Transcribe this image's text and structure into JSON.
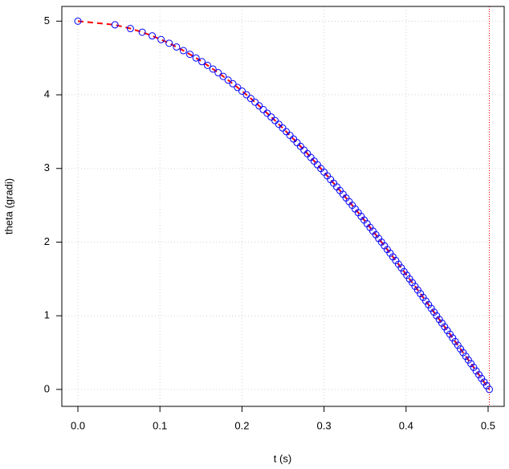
{
  "chart_data": {
    "type": "scatter",
    "xlabel": "t (s)",
    "ylabel": "theta (gradi)",
    "series": [
      {
        "color": "#0000ff",
        "line_color": "#ff0000",
        "x": [
          0,
          0.0452,
          0.064,
          0.0784,
          0.0906,
          0.1014,
          0.1112,
          0.1202,
          0.1286,
          0.1365,
          0.144,
          0.1512,
          0.158,
          0.1646,
          0.171,
          0.1771,
          0.1831,
          0.1889,
          0.1946,
          0.2001,
          0.2055,
          0.2107,
          0.2159,
          0.2209,
          0.2259,
          0.2307,
          0.2355,
          0.2403,
          0.2449,
          0.2495,
          0.254,
          0.2584,
          0.2628,
          0.2671,
          0.2714,
          0.2756,
          0.2798,
          0.2839,
          0.288,
          0.292,
          0.2961,
          0.3,
          0.304,
          0.3079,
          0.3117,
          0.3156,
          0.3194,
          0.3232,
          0.3269,
          0.3306,
          0.3344,
          0.338,
          0.3417,
          0.3453,
          0.3489,
          0.3525,
          0.3561,
          0.3596,
          0.3632,
          0.3666,
          0.3701,
          0.3736,
          0.3771,
          0.3805,
          0.3839,
          0.3874,
          0.3908,
          0.3942,
          0.3975,
          0.4009,
          0.4042,
          0.4076,
          0.4109,
          0.4142,
          0.4175,
          0.4208,
          0.4241,
          0.4274,
          0.4307,
          0.434,
          0.4372,
          0.4405,
          0.4437,
          0.447,
          0.4502,
          0.4535,
          0.4567,
          0.4599,
          0.4631,
          0.4663,
          0.4695,
          0.4728,
          0.4759,
          0.4791,
          0.4824,
          0.4855,
          0.4888,
          0.4919,
          0.4951,
          0.4983,
          0.5015
        ],
        "values": [
          5,
          4.95,
          4.9,
          4.85,
          4.8,
          4.75,
          4.7,
          4.65,
          4.6,
          4.55,
          4.5,
          4.45,
          4.4,
          4.35,
          4.3,
          4.25,
          4.2,
          4.15,
          4.1,
          4.05,
          4,
          3.95,
          3.9,
          3.85,
          3.8,
          3.75,
          3.7,
          3.65,
          3.6,
          3.55,
          3.5,
          3.45,
          3.4,
          3.35,
          3.3,
          3.25,
          3.2,
          3.15,
          3.1,
          3.05,
          3,
          2.95,
          2.9,
          2.85,
          2.8,
          2.75,
          2.7,
          2.65,
          2.6,
          2.55,
          2.5,
          2.45,
          2.4,
          2.35,
          2.3,
          2.25,
          2.2,
          2.15,
          2.1,
          2.05,
          2,
          1.95,
          1.9,
          1.85,
          1.8,
          1.75,
          1.7,
          1.65,
          1.6,
          1.55,
          1.5,
          1.45,
          1.4,
          1.35,
          1.3,
          1.25,
          1.2,
          1.15,
          1.1,
          1.05,
          1,
          0.95,
          0.9,
          0.85,
          0.8,
          0.75,
          0.7,
          0.65,
          0.6,
          0.55,
          0.5,
          0.45,
          0.4,
          0.35,
          0.3,
          0.25,
          0.2,
          0.15,
          0.1,
          0.05,
          0
        ]
      }
    ],
    "vline": {
      "x": 0.5015,
      "color": "#ff0000"
    },
    "xlim": [
      -0.0196,
      0.5196
    ],
    "ylim": [
      -0.23,
      5.2
    ],
    "xticks": [
      {
        "value": 0,
        "label": "0.0"
      },
      {
        "value": 0.1,
        "label": "0.1"
      },
      {
        "value": 0.2,
        "label": "0.2"
      },
      {
        "value": 0.3,
        "label": "0.3"
      },
      {
        "value": 0.4,
        "label": "0.4"
      },
      {
        "value": 0.5,
        "label": "0.5"
      }
    ],
    "yticks": [
      0,
      1,
      2,
      3,
      4,
      5
    ],
    "grid": true
  }
}
